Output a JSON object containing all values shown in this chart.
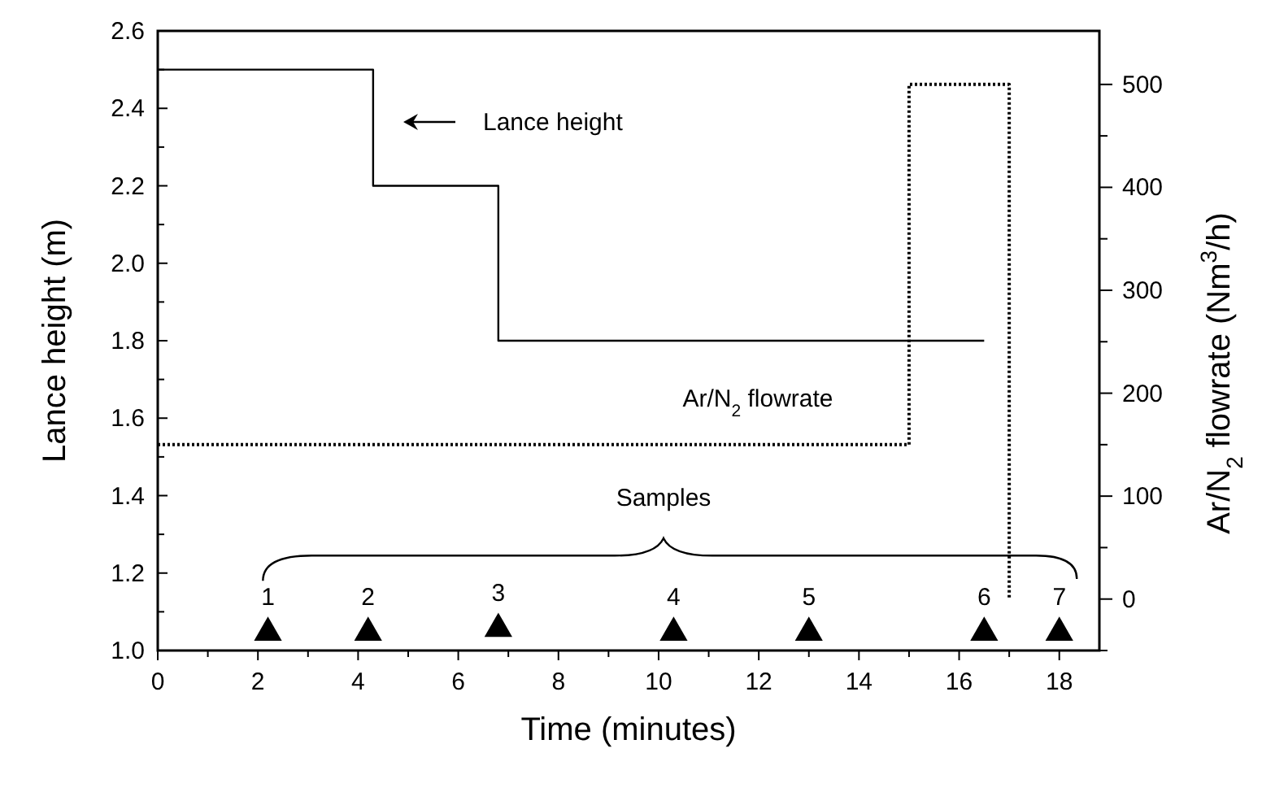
{
  "chart_data": {
    "type": "step",
    "xlabel": "Time (minutes)",
    "ylabel": "Lance height (m)",
    "y2label": "Ar/N$_{2}$ flowrate (Nm$^{3}$/h)",
    "xlim": [
      0,
      18.8
    ],
    "ylim": [
      1.0,
      2.6
    ],
    "y2lim": [
      -50,
      552
    ],
    "xticks": [
      0,
      {
        "value": 1,
        "label": null
      },
      2,
      {
        "value": 3,
        "label": null
      },
      4,
      {
        "value": 5,
        "label": null
      },
      6,
      {
        "value": 7,
        "label": null
      },
      8,
      {
        "value": 9,
        "label": null
      },
      10,
      {
        "value": 11,
        "label": null
      },
      12,
      {
        "value": 13,
        "label": null
      },
      14,
      {
        "value": 15,
        "label": null
      },
      16,
      {
        "value": 17,
        "label": null
      },
      18
    ],
    "yticks": [
      {
        "value": 1.0,
        "label": "1.0"
      },
      {
        "value": 1.1,
        "label": null
      },
      {
        "value": 1.2,
        "label": "1.2"
      },
      {
        "value": 1.3,
        "label": null
      },
      {
        "value": 1.4,
        "label": "1.4"
      },
      {
        "value": 1.5,
        "label": null
      },
      {
        "value": 1.6,
        "label": "1.6"
      },
      {
        "value": 1.7,
        "label": null
      },
      {
        "value": 1.8,
        "label": "1.8"
      },
      {
        "value": 1.9,
        "label": null
      },
      {
        "value": 2.0,
        "label": "2.0"
      },
      {
        "value": 2.1,
        "label": null
      },
      {
        "value": 2.2,
        "label": "2.2"
      },
      {
        "value": 2.3,
        "label": null
      },
      {
        "value": 2.4,
        "label": "2.4"
      },
      {
        "value": 2.5,
        "label": null
      },
      {
        "value": 2.6,
        "label": "2.6"
      }
    ],
    "y2ticks": [
      {
        "value": -50,
        "label": null
      },
      0,
      {
        "value": 50,
        "label": null
      },
      100,
      {
        "value": 150,
        "label": null
      },
      200,
      {
        "value": 250,
        "label": null
      },
      300,
      {
        "value": 350,
        "label": null
      },
      400,
      {
        "value": 450,
        "label": null
      },
      500
    ],
    "series": [
      {
        "color": "#000000",
        "line_style": "solid",
        "x": [
          0,
          4.3,
          6.8,
          16.5
        ],
        "values": [
          2.5,
          2.2,
          1.8,
          1.8
        ]
      },
      {
        "color": "#000000",
        "line_style": "dotted",
        "axis": "y2",
        "x": [
          0,
          15,
          17
        ],
        "values": [
          150,
          500,
          0
        ]
      },
      {
        "type": "scatter",
        "color": "#000000",
        "marker": "triangle",
        "x": [
          2.2,
          4.2,
          6.8,
          10.3,
          13.0,
          16.5,
          18.0
        ],
        "values": [
          1.05,
          1.05,
          1.06,
          1.05,
          1.05,
          1.05,
          1.05
        ]
      }
    ],
    "annotations": [
      "Lance height",
      "Ar/N$_{2}$ flowrate",
      "Samples",
      {
        "text": "1",
        "x": 2.2,
        "y": 1.05
      },
      {
        "text": "2",
        "x": 4.2,
        "y": 1.05
      },
      {
        "text": "3",
        "x": 6.8,
        "y": 1.06
      },
      {
        "text": "4",
        "x": 10.3,
        "y": 1.05
      },
      {
        "text": "5",
        "x": 13.0,
        "y": 1.05
      },
      {
        "text": "6",
        "x": 16.5,
        "y": 1.05
      },
      {
        "text": "7",
        "x": 18.0,
        "y": 1.05
      }
    ]
  }
}
